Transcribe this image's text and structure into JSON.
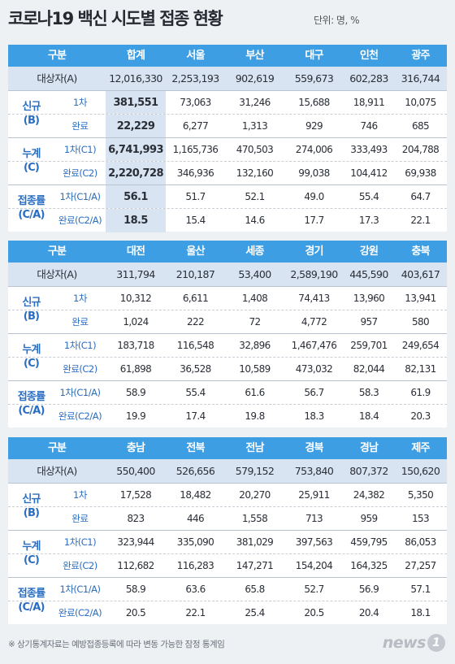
{
  "title": "코로나19 백신 시도별 접종 현황",
  "unit": "단위: 명, %",
  "footer_note": "※ 상기통계자료는 예방접종등록에 따라 변동 가능한 잠정 통계임",
  "logo": {
    "text": "news",
    "mark": "1"
  },
  "labels": {
    "category": "구분",
    "target": "대상자(A)",
    "new_group": [
      "신규",
      "(B)"
    ],
    "cum_group": [
      "누계",
      "(C)"
    ],
    "rate_group": [
      "접종률",
      "(C/A)"
    ]
  },
  "tables": [
    {
      "regions": [
        "합계",
        "서울",
        "부산",
        "대구",
        "인천",
        "광주"
      ],
      "target": [
        "12,016,330",
        "2,253,193",
        "902,619",
        "559,673",
        "602,283",
        "316,744"
      ],
      "rows": [
        {
          "sub": "1차",
          "values": [
            "381,551",
            "73,063",
            "31,246",
            "15,688",
            "18,911",
            "10,075"
          ]
        },
        {
          "sub": "완료",
          "values": [
            "22,229",
            "6,277",
            "1,313",
            "929",
            "746",
            "685"
          ]
        },
        {
          "sub": "1차(C1)",
          "values": [
            "6,741,993",
            "1,165,736",
            "470,503",
            "274,006",
            "333,493",
            "204,788"
          ]
        },
        {
          "sub": "완료(C2)",
          "values": [
            "2,220,728",
            "346,936",
            "132,160",
            "99,038",
            "104,412",
            "69,938"
          ]
        },
        {
          "sub": "1차(C1/A)",
          "values": [
            "56.1",
            "51.7",
            "52.1",
            "49.0",
            "55.4",
            "64.7"
          ]
        },
        {
          "sub": "완료(C2/A)",
          "values": [
            "18.5",
            "15.4",
            "14.6",
            "17.7",
            "17.3",
            "22.1"
          ]
        }
      ]
    },
    {
      "regions": [
        "대전",
        "울산",
        "세종",
        "경기",
        "강원",
        "충북"
      ],
      "target": [
        "311,794",
        "210,187",
        "53,400",
        "2,589,190",
        "445,590",
        "403,617"
      ],
      "rows": [
        {
          "sub": "1차",
          "values": [
            "10,312",
            "6,611",
            "1,408",
            "74,413",
            "13,960",
            "13,941"
          ]
        },
        {
          "sub": "완료",
          "values": [
            "1,024",
            "222",
            "72",
            "4,772",
            "957",
            "580"
          ]
        },
        {
          "sub": "1차(C1)",
          "values": [
            "183,718",
            "116,548",
            "32,896",
            "1,467,476",
            "259,701",
            "249,654"
          ]
        },
        {
          "sub": "완료(C2)",
          "values": [
            "61,898",
            "36,528",
            "10,589",
            "473,032",
            "82,044",
            "82,131"
          ]
        },
        {
          "sub": "1차(C1/A)",
          "values": [
            "58.9",
            "55.4",
            "61.6",
            "56.7",
            "58.3",
            "61.9"
          ]
        },
        {
          "sub": "완료(C2/A)",
          "values": [
            "19.9",
            "17.4",
            "19.8",
            "18.3",
            "18.4",
            "20.3"
          ]
        }
      ]
    },
    {
      "regions": [
        "충남",
        "전북",
        "전남",
        "경북",
        "경남",
        "제주"
      ],
      "target": [
        "550,400",
        "526,656",
        "579,152",
        "753,840",
        "807,372",
        "150,620"
      ],
      "rows": [
        {
          "sub": "1차",
          "values": [
            "17,528",
            "18,482",
            "20,270",
            "25,911",
            "24,382",
            "5,350"
          ]
        },
        {
          "sub": "완료",
          "values": [
            "823",
            "446",
            "1,558",
            "713",
            "959",
            "153"
          ]
        },
        {
          "sub": "1차(C1)",
          "values": [
            "323,944",
            "335,090",
            "381,029",
            "397,563",
            "459,795",
            "86,053"
          ]
        },
        {
          "sub": "완료(C2)",
          "values": [
            "112,682",
            "116,283",
            "147,271",
            "154,204",
            "164,325",
            "27,257"
          ]
        },
        {
          "sub": "1차(C1/A)",
          "values": [
            "58.9",
            "63.6",
            "65.8",
            "52.7",
            "56.9",
            "57.1"
          ]
        },
        {
          "sub": "완료(C2/A)",
          "values": [
            "20.5",
            "22.1",
            "25.4",
            "20.5",
            "20.4",
            "18.1"
          ]
        }
      ]
    }
  ],
  "colors": {
    "header": "#3d9ee3",
    "target_row": "#d8e4f2",
    "group_text": "#2a6ec2"
  }
}
